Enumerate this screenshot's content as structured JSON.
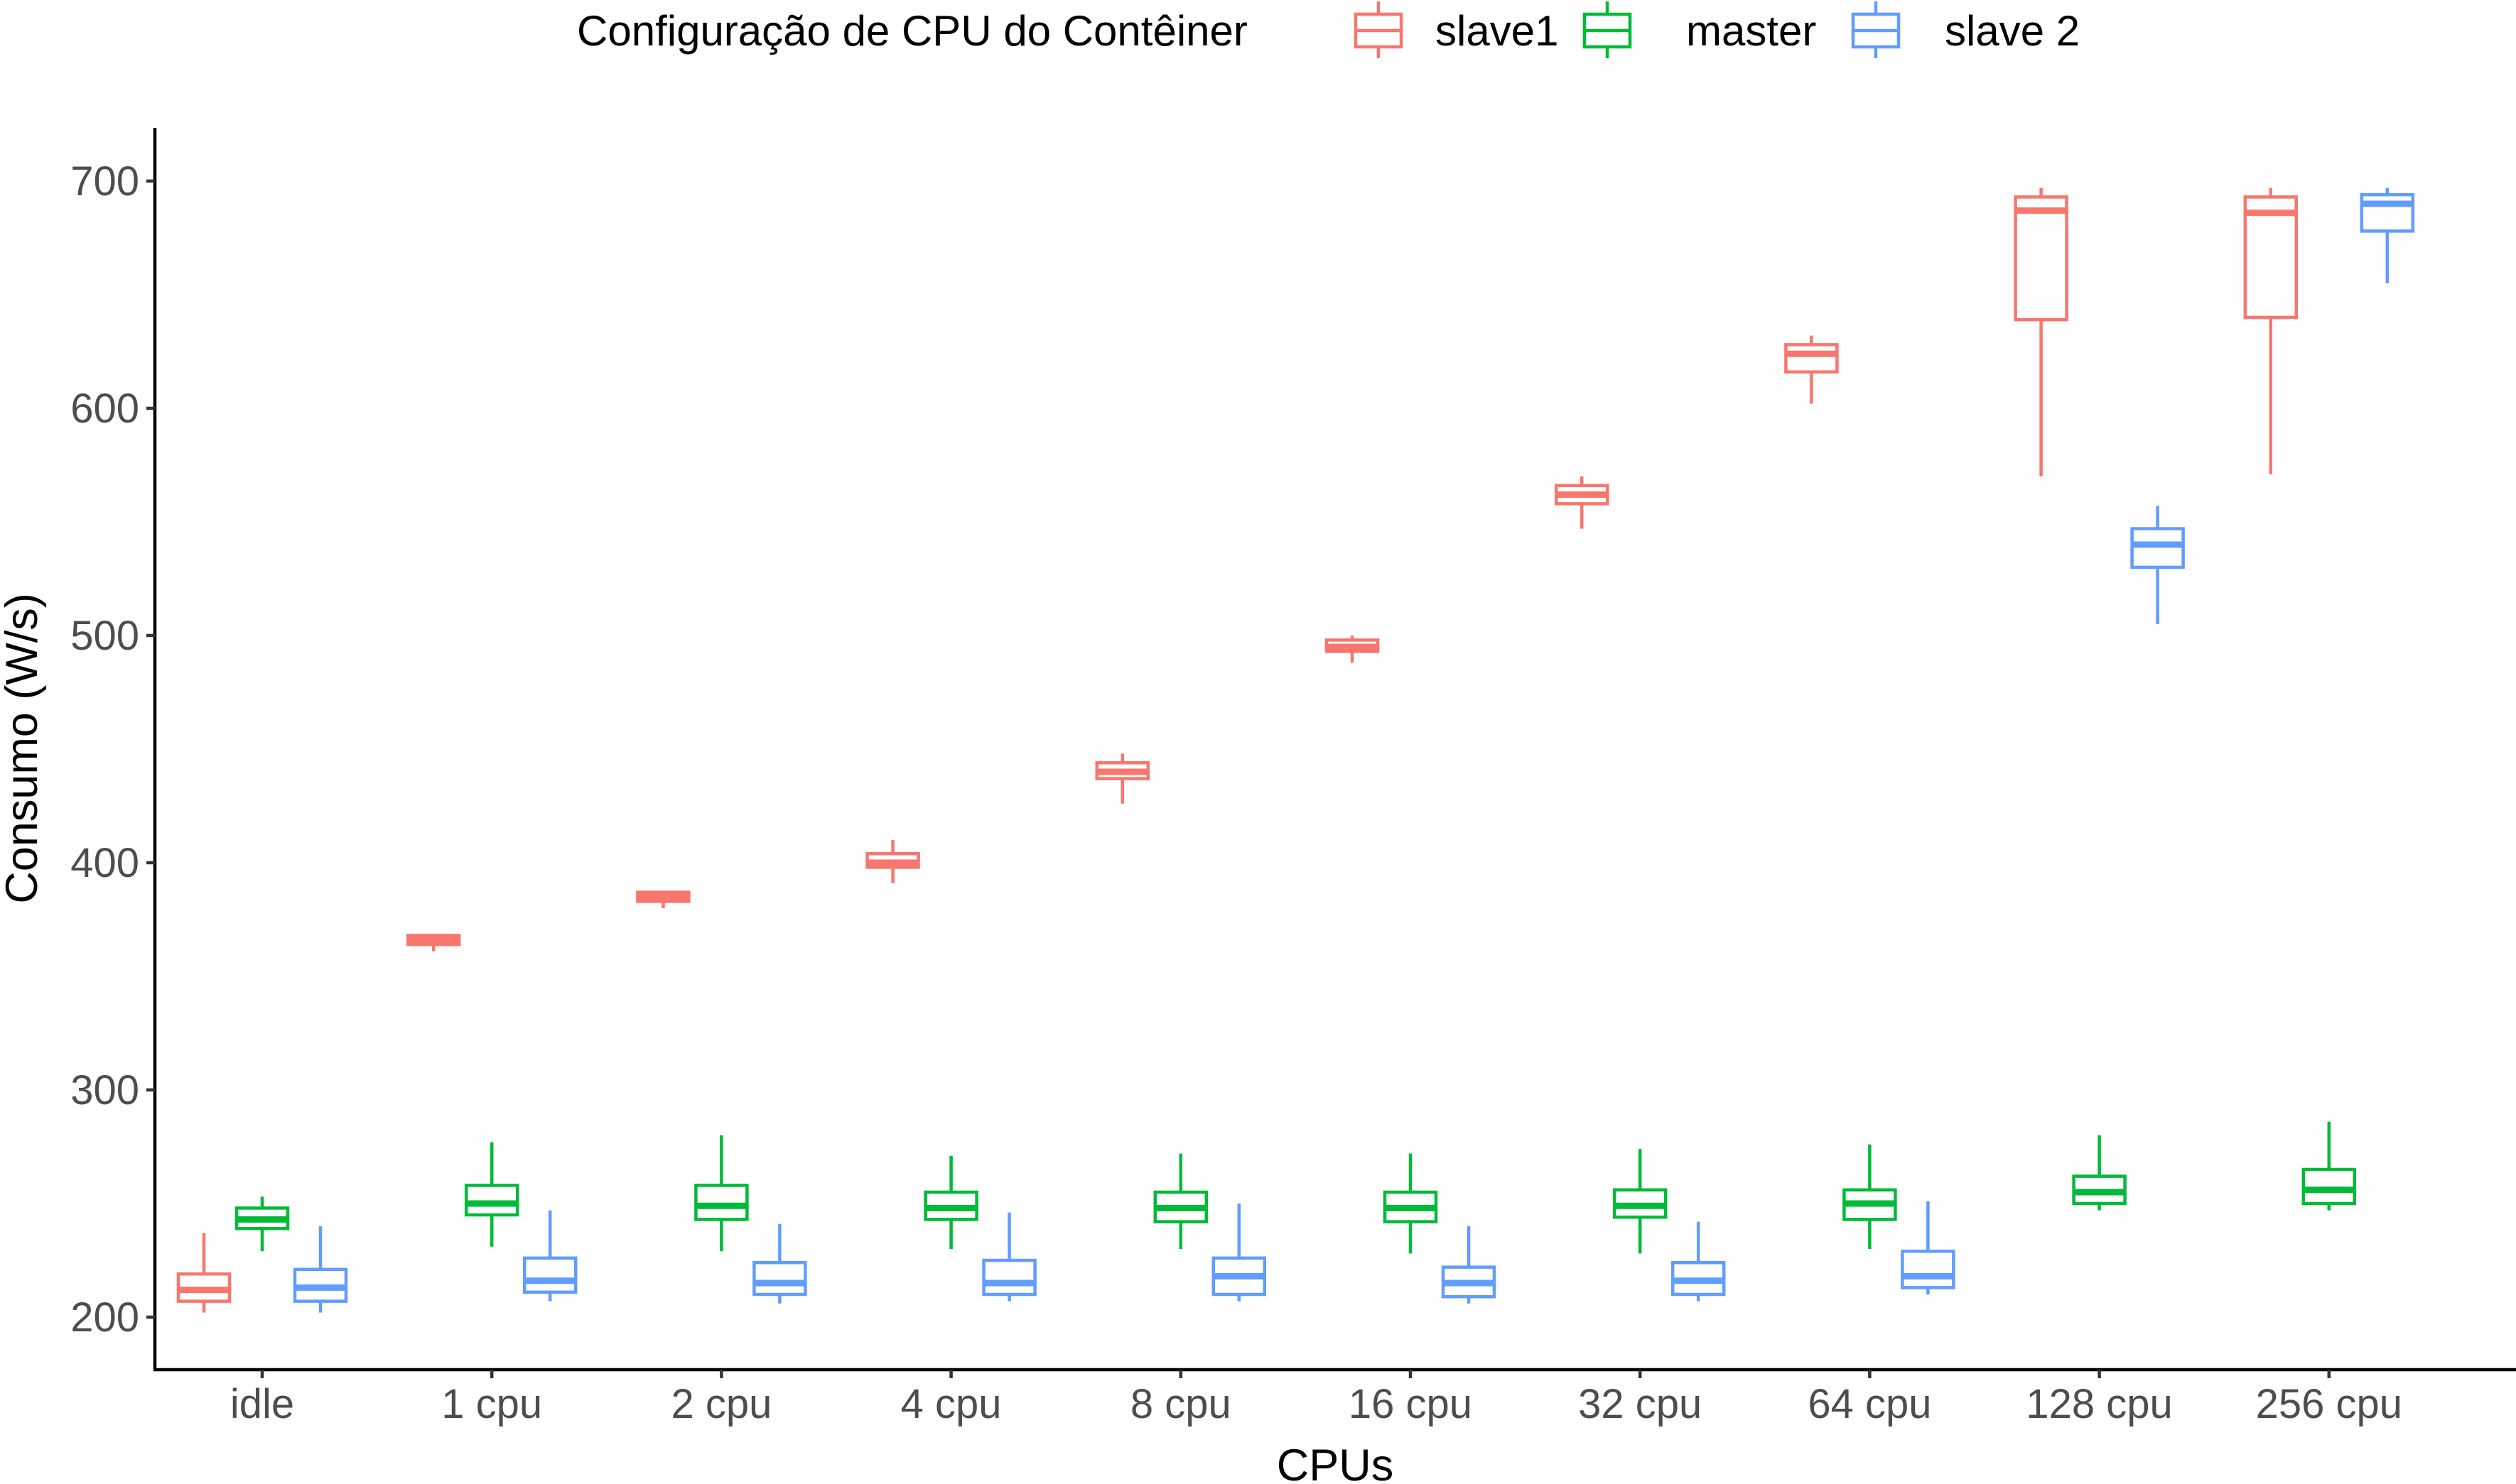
{
  "chart_data": {
    "type": "boxplot",
    "xlabel": "CPUs",
    "ylabel": "Consumo (W/s)",
    "ylim": [
      176,
      722
    ],
    "yticks": [
      200,
      300,
      400,
      500,
      600,
      700
    ],
    "ytick_labels": [
      "200",
      "300",
      "400",
      "500",
      "600",
      "700"
    ],
    "categories": [
      "idle",
      "1 cpu",
      "2 cpu",
      "4 cpu",
      "8 cpu",
      "16 cpu",
      "32 cpu",
      "64 cpu",
      "128 cpu",
      "256 cpu"
    ],
    "legend": {
      "title": "Configuração de CPU do Contêiner",
      "position": "top"
    },
    "grid": false,
    "series": [
      {
        "name": "slave1",
        "color": "#F8766D",
        "boxes": [
          {
            "min": 202,
            "q1": 207,
            "median": 212,
            "q3": 219,
            "max": 237
          },
          {
            "min": 361,
            "q1": 364,
            "median": 366,
            "q3": 368,
            "max": 368
          },
          {
            "min": 380,
            "q1": 383,
            "median": 385,
            "q3": 387,
            "max": 387
          },
          {
            "min": 391,
            "q1": 398,
            "median": 400,
            "q3": 404,
            "max": 410
          },
          {
            "min": 426,
            "q1": 437,
            "median": 440,
            "q3": 444,
            "max": 448
          },
          {
            "min": 488,
            "q1": 493,
            "median": 495,
            "q3": 498,
            "max": 500
          },
          {
            "min": 547,
            "q1": 558,
            "median": 562,
            "q3": 566,
            "max": 570
          },
          {
            "min": 602,
            "q1": 616,
            "median": 624,
            "q3": 628,
            "max": 632
          },
          {
            "min": 570,
            "q1": 639,
            "median": 687,
            "q3": 693,
            "max": 697
          },
          {
            "min": 571,
            "q1": 640,
            "median": 686,
            "q3": 693,
            "max": 697
          }
        ]
      },
      {
        "name": "master",
        "color": "#00BA38",
        "boxes": [
          {
            "min": 229,
            "q1": 239,
            "median": 243,
            "q3": 248,
            "max": 253
          },
          {
            "min": 231,
            "q1": 245,
            "median": 250,
            "q3": 258,
            "max": 277
          },
          {
            "min": 229,
            "q1": 243,
            "median": 249,
            "q3": 258,
            "max": 280
          },
          {
            "min": 230,
            "q1": 243,
            "median": 248,
            "q3": 255,
            "max": 271
          },
          {
            "min": 230,
            "q1": 242,
            "median": 248,
            "q3": 255,
            "max": 272
          },
          {
            "min": 228,
            "q1": 242,
            "median": 248,
            "q3": 255,
            "max": 272
          },
          {
            "min": 228,
            "q1": 244,
            "median": 249,
            "q3": 256,
            "max": 274
          },
          {
            "min": 230,
            "q1": 243,
            "median": 250,
            "q3": 256,
            "max": 276
          },
          {
            "min": 247,
            "q1": 250,
            "median": 255,
            "q3": 262,
            "max": 280
          },
          {
            "min": 247,
            "q1": 250,
            "median": 256,
            "q3": 265,
            "max": 286
          }
        ]
      },
      {
        "name": "slave 2",
        "color": "#619CFF",
        "boxes": [
          {
            "min": 202,
            "q1": 207,
            "median": 213,
            "q3": 221,
            "max": 240
          },
          {
            "min": 207,
            "q1": 211,
            "median": 216,
            "q3": 226,
            "max": 247
          },
          {
            "min": 206,
            "q1": 210,
            "median": 215,
            "q3": 224,
            "max": 241
          },
          {
            "min": 207,
            "q1": 210,
            "median": 215,
            "q3": 225,
            "max": 246
          },
          {
            "min": 207,
            "q1": 210,
            "median": 218,
            "q3": 226,
            "max": 250
          },
          {
            "min": 206,
            "q1": 209,
            "median": 215,
            "q3": 222,
            "max": 240
          },
          {
            "min": 207,
            "q1": 210,
            "median": 216,
            "q3": 224,
            "max": 242
          },
          {
            "min": 210,
            "q1": 213,
            "median": 218,
            "q3": 229,
            "max": 251
          },
          {
            "min": 505,
            "q1": 530,
            "median": 540,
            "q3": 547,
            "max": 557
          },
          {
            "min": 655,
            "q1": 678,
            "median": 690,
            "q3": 694,
            "max": 697
          }
        ]
      }
    ]
  }
}
